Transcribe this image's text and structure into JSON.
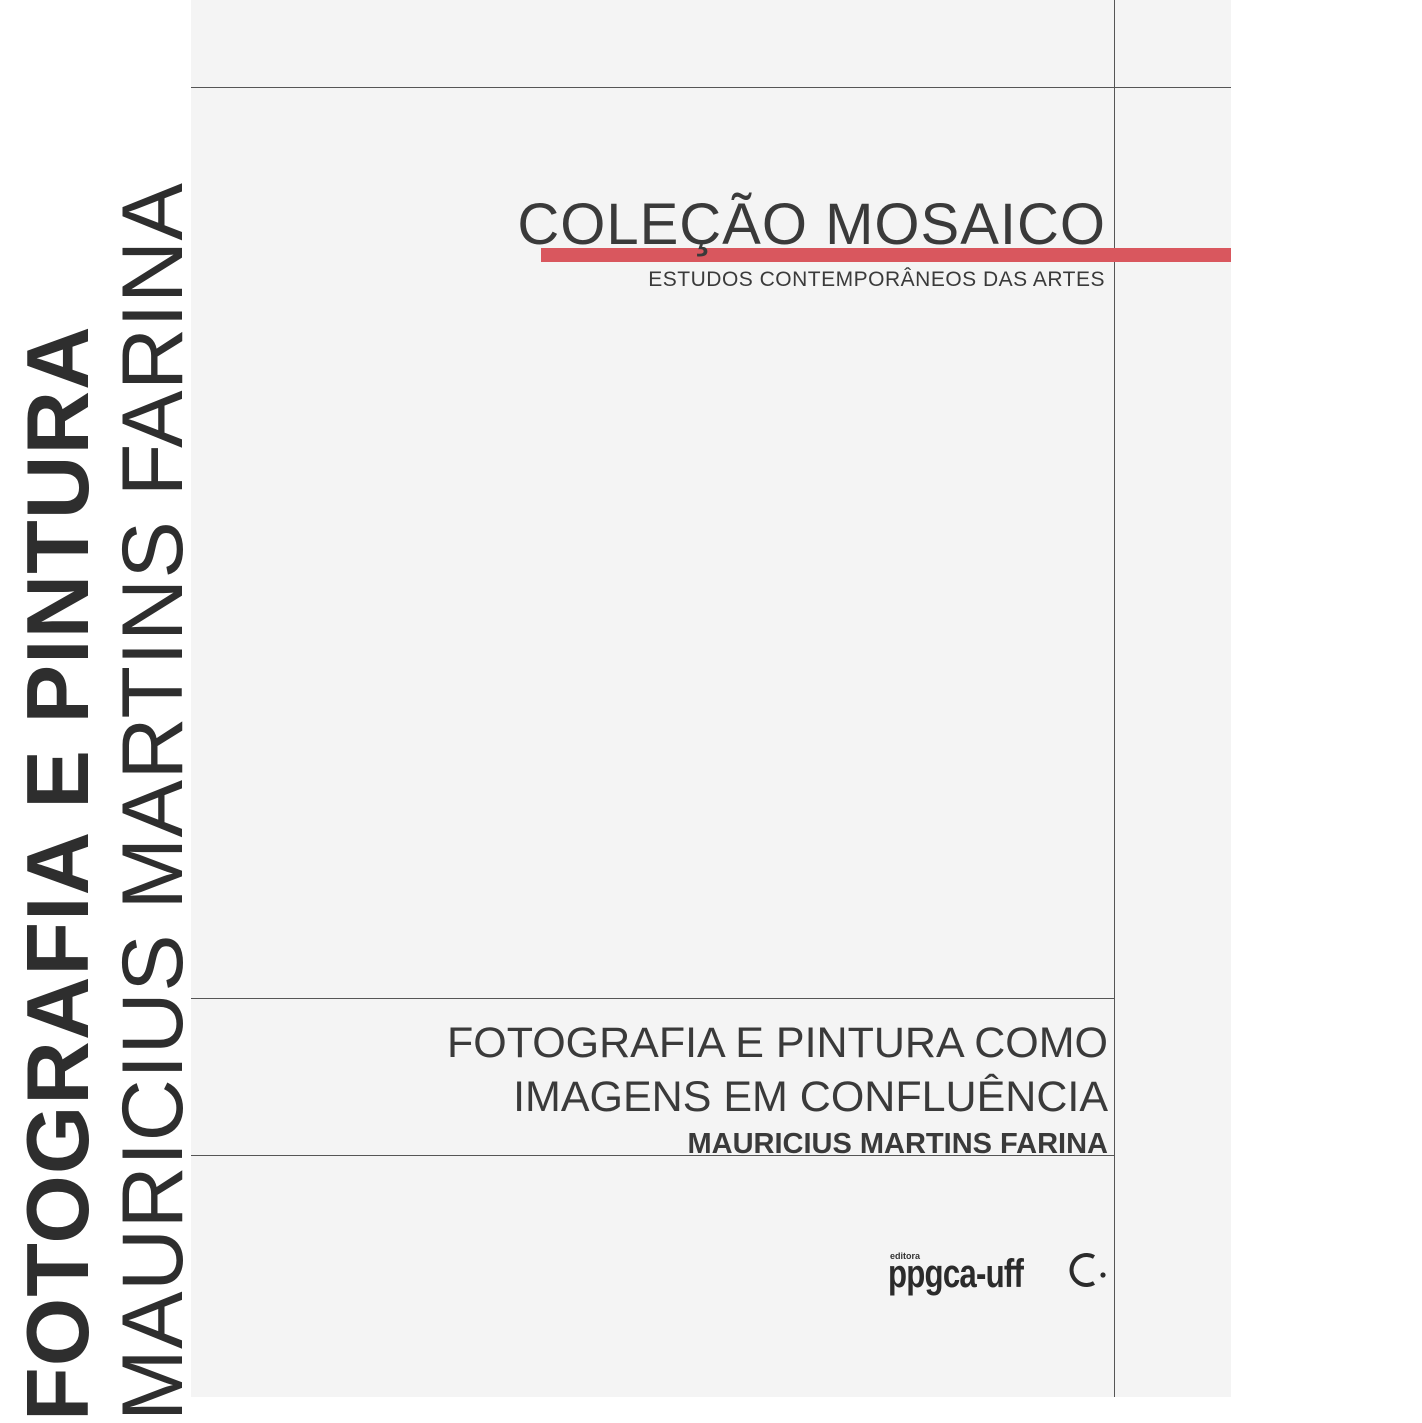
{
  "spine": {
    "title": "FOTOGRAFIA E PINTURA",
    "author": "MAURICIUS MARTINS FARINA"
  },
  "collection": {
    "title": "COLEÇÃO MOSAICO",
    "subtitle": "ESTUDOS CONTEMPORÂNEOS DAS ARTES"
  },
  "book": {
    "title_line1": "FOTOGRAFIA E PINTURA COMO",
    "title_line2": "IMAGENS EM CONFLUÊNCIA",
    "author": "MAURICIUS MARTINS FARINA"
  },
  "publisher": {
    "small_label": "editora",
    "name": "ppgca-uff",
    "second_logo_icon": "c-dot-logo-icon"
  },
  "colors": {
    "accent_red": "#d9575e",
    "cover_background": "#f4f4f4",
    "text": "#3a3a3a"
  }
}
